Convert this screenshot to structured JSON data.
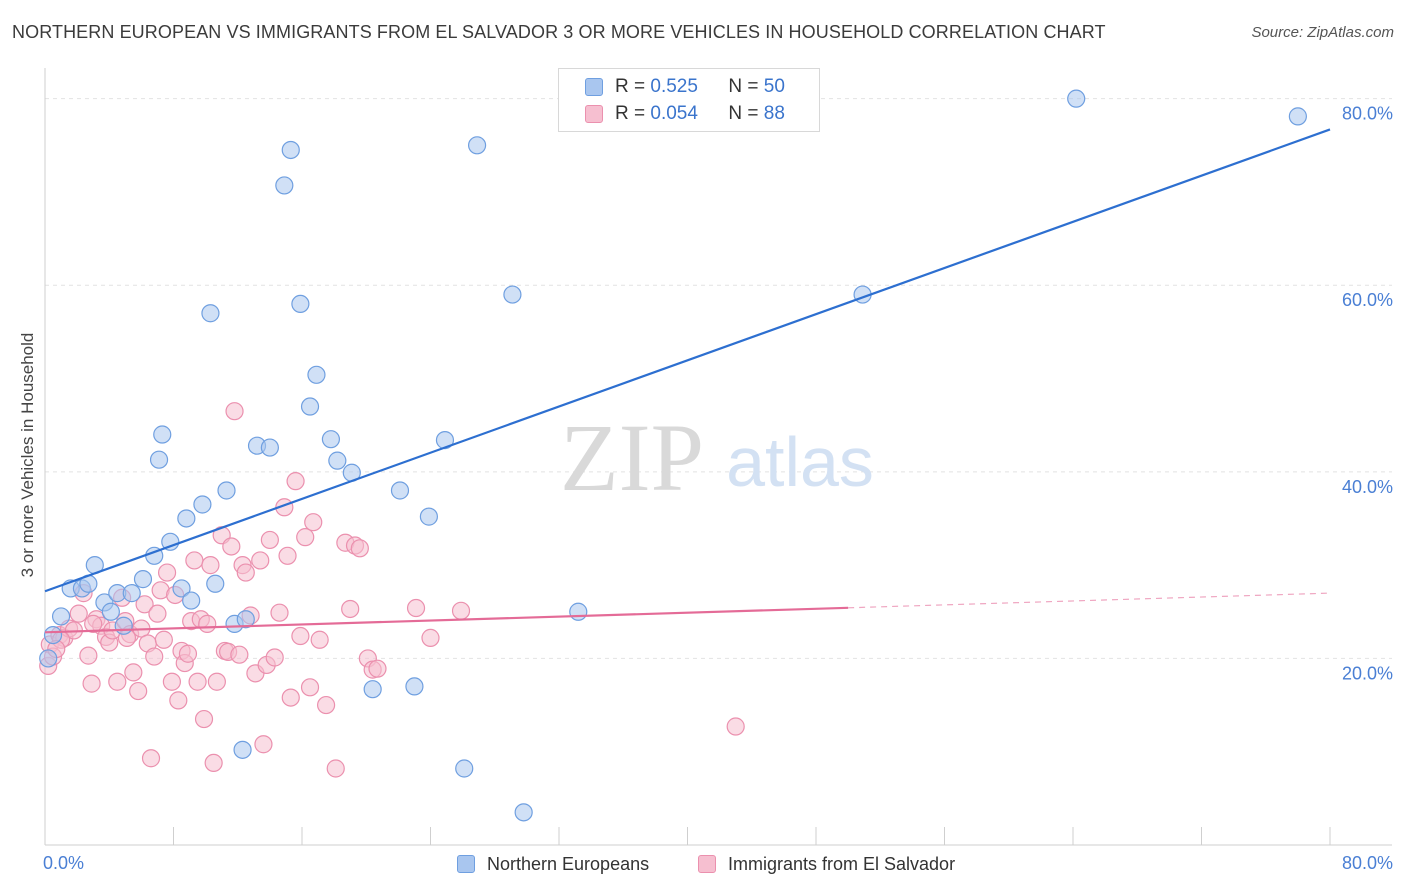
{
  "header": {
    "title": "NORTHERN EUROPEAN VS IMMIGRANTS FROM EL SALVADOR 3 OR MORE VEHICLES IN HOUSEHOLD CORRELATION CHART",
    "source": "Source: ZipAtlas.com"
  },
  "watermark": {
    "zip": "ZIP",
    "atlas": "atlas"
  },
  "legend_top": [
    {
      "r_label": "R =",
      "r_value": "0.525",
      "n_label": "N =",
      "n_value": "50"
    },
    {
      "r_label": "R =",
      "r_value": "0.054",
      "n_label": "N =",
      "n_value": "88"
    }
  ],
  "legend_bottom": [
    "Northern Europeans",
    "Immigrants from El Salvador"
  ],
  "chart_data": {
    "type": "scatter",
    "ylabel": "3 or more Vehicles in Household",
    "xlim": [
      0,
      80
    ],
    "ylim": [
      0,
      82
    ],
    "x_tick_labels": [
      "0.0%",
      "80.0%"
    ],
    "y_ticks": [
      20,
      40,
      60,
      80
    ],
    "y_tick_labels": [
      "20.0%",
      "40.0%",
      "60.0%",
      "80.0%"
    ],
    "grid": true,
    "colors": {
      "blue_fill": "#a9c6ef",
      "blue_stroke": "#6f9fe0",
      "blue_line": "#2d6fd0",
      "pink_fill": "#f6bfd0",
      "pink_stroke": "#eb90ae",
      "pink_line": "#e46b97"
    },
    "series": [
      {
        "name": "Northern Europeans",
        "color": "blue",
        "trend": {
          "x0": 0,
          "y0": 27.2,
          "x1": 80,
          "y1": 76.7,
          "solid_to": 80
        },
        "points": [
          [
            0.5,
            22.5
          ],
          [
            1.0,
            24.5
          ],
          [
            1.6,
            27.5
          ],
          [
            2.3,
            27.5
          ],
          [
            2.7,
            28
          ],
          [
            3.1,
            30
          ],
          [
            3.7,
            26
          ],
          [
            4.1,
            25
          ],
          [
            4.5,
            27
          ],
          [
            4.9,
            23.5
          ],
          [
            5.4,
            27
          ],
          [
            6.1,
            28.5
          ],
          [
            6.8,
            31
          ],
          [
            7.1,
            41.3
          ],
          [
            7.3,
            44
          ],
          [
            7.8,
            32.5
          ],
          [
            8.5,
            27.5
          ],
          [
            8.8,
            35
          ],
          [
            9.1,
            26.2
          ],
          [
            9.8,
            36.5
          ],
          [
            10.3,
            57
          ],
          [
            10.6,
            28
          ],
          [
            11.3,
            38
          ],
          [
            11.8,
            23.7
          ],
          [
            12.3,
            10.2
          ],
          [
            12.5,
            24.2
          ],
          [
            13.2,
            42.8
          ],
          [
            14.0,
            42.6
          ],
          [
            14.9,
            70.7
          ],
          [
            15.3,
            74.5
          ],
          [
            15.9,
            58
          ],
          [
            16.5,
            47
          ],
          [
            16.9,
            50.4
          ],
          [
            17.8,
            43.5
          ],
          [
            18.2,
            41.2
          ],
          [
            19.1,
            39.9
          ],
          [
            20.4,
            16.7
          ],
          [
            22.1,
            38
          ],
          [
            23.0,
            17
          ],
          [
            23.9,
            35.2
          ],
          [
            24.9,
            43.4
          ],
          [
            26.1,
            8.2
          ],
          [
            26.9,
            75
          ],
          [
            29.1,
            59
          ],
          [
            29.8,
            3.5
          ],
          [
            33.2,
            25
          ],
          [
            50.9,
            59
          ],
          [
            64.2,
            80
          ],
          [
            78.0,
            78.1
          ],
          [
            0.2,
            20
          ]
        ]
      },
      {
        "name": "Immigrants from El Salvador",
        "color": "pink",
        "trend": {
          "x0": 0,
          "y0": 22.8,
          "x1": 80,
          "y1": 27,
          "solid_to": 50
        },
        "points": [
          [
            0.2,
            19.2
          ],
          [
            0.3,
            21.5
          ],
          [
            0.5,
            20.2
          ],
          [
            0.9,
            22.5
          ],
          [
            1.2,
            22.2
          ],
          [
            1.5,
            23.2
          ],
          [
            1.8,
            23
          ],
          [
            2.1,
            24.8
          ],
          [
            2.4,
            27
          ],
          [
            2.7,
            20.3
          ],
          [
            2.9,
            17.3
          ],
          [
            3.2,
            24.2
          ],
          [
            3.5,
            23.5
          ],
          [
            3.8,
            22.3
          ],
          [
            4.0,
            21.7
          ],
          [
            4.2,
            23
          ],
          [
            4.5,
            17.5
          ],
          [
            4.8,
            26.5
          ],
          [
            5.0,
            24
          ],
          [
            5.3,
            22.6
          ],
          [
            5.5,
            18.5
          ],
          [
            5.8,
            16.5
          ],
          [
            6.0,
            23.2
          ],
          [
            6.2,
            25.8
          ],
          [
            6.4,
            21.6
          ],
          [
            6.6,
            9.3
          ],
          [
            6.8,
            20.2
          ],
          [
            7.0,
            24.8
          ],
          [
            7.2,
            27.3
          ],
          [
            7.4,
            22
          ],
          [
            7.6,
            29.2
          ],
          [
            7.9,
            17.5
          ],
          [
            8.1,
            26.8
          ],
          [
            8.3,
            15.5
          ],
          [
            8.5,
            20.8
          ],
          [
            8.7,
            19.5
          ],
          [
            8.9,
            20.5
          ],
          [
            9.1,
            24
          ],
          [
            9.3,
            30.5
          ],
          [
            9.5,
            17.5
          ],
          [
            9.7,
            24.2
          ],
          [
            9.9,
            13.5
          ],
          [
            10.1,
            23.7
          ],
          [
            10.3,
            30
          ],
          [
            10.5,
            8.8
          ],
          [
            10.7,
            17.5
          ],
          [
            11.0,
            33.2
          ],
          [
            11.2,
            20.8
          ],
          [
            11.4,
            20.7
          ],
          [
            11.6,
            32
          ],
          [
            11.8,
            46.5
          ],
          [
            12.1,
            20.4
          ],
          [
            12.3,
            30
          ],
          [
            12.5,
            29.2
          ],
          [
            12.8,
            24.6
          ],
          [
            13.1,
            18.4
          ],
          [
            13.4,
            30.5
          ],
          [
            13.6,
            10.8
          ],
          [
            13.8,
            19.3
          ],
          [
            14.0,
            32.7
          ],
          [
            14.3,
            20.1
          ],
          [
            14.6,
            24.9
          ],
          [
            14.9,
            36.2
          ],
          [
            15.1,
            31
          ],
          [
            15.3,
            15.8
          ],
          [
            15.6,
            39
          ],
          [
            15.9,
            22.4
          ],
          [
            16.2,
            33
          ],
          [
            16.5,
            16.9
          ],
          [
            16.7,
            34.6
          ],
          [
            17.1,
            22
          ],
          [
            17.5,
            15
          ],
          [
            18.1,
            8.2
          ],
          [
            18.7,
            32.4
          ],
          [
            19.0,
            25.3
          ],
          [
            19.3,
            32.1
          ],
          [
            19.6,
            31.8
          ],
          [
            20.1,
            20
          ],
          [
            20.4,
            18.8
          ],
          [
            20.7,
            18.9
          ],
          [
            23.1,
            25.4
          ],
          [
            24.0,
            22.2
          ],
          [
            25.9,
            25.1
          ],
          [
            43.0,
            12.7
          ],
          [
            1.0,
            22
          ],
          [
            3.0,
            23.7
          ],
          [
            5.1,
            22.2
          ],
          [
            0.7,
            21
          ]
        ]
      }
    ]
  }
}
